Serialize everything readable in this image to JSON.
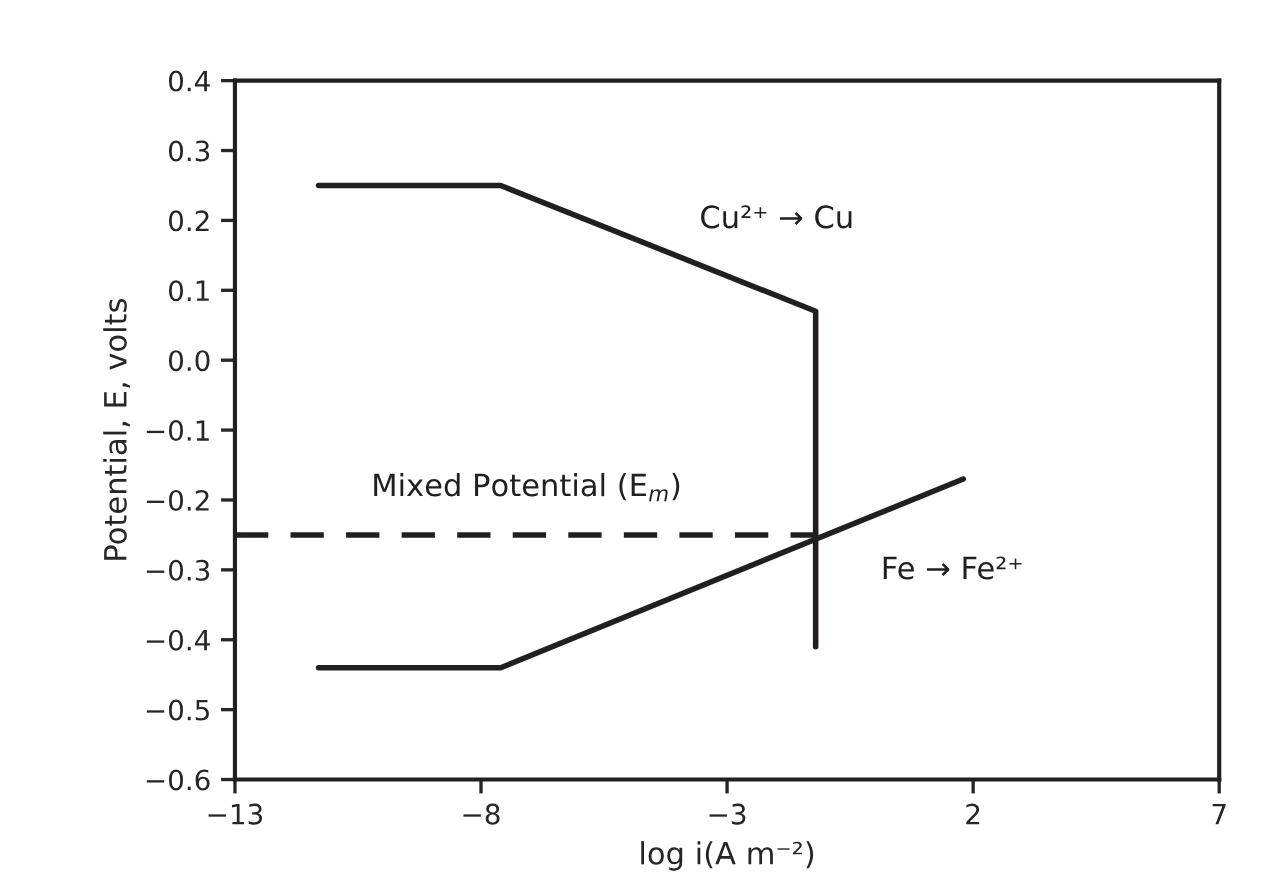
{
  "chart_data": {
    "type": "line",
    "xlabel": "log i(A m⁻²)",
    "ylabel": "Potential, E, volts",
    "series": [
      {
        "name": "Cu²⁺ → Cu",
        "color": "#231f20",
        "x": [
          -11.3,
          -7.6,
          -1.2,
          -1.2
        ],
        "values": [
          0.25,
          0.25,
          0.07,
          -0.41
        ],
        "line_style": "solid"
      },
      {
        "name": "Fe → Fe²⁺",
        "color": "#231f20",
        "x": [
          -11.3,
          -7.6,
          1.8
        ],
        "values": [
          -0.44,
          -0.44,
          -0.17
        ],
        "line_style": "solid"
      },
      {
        "name": "Mixed Potential (E$_{m}$)",
        "color": "#231f20",
        "x": [
          -13,
          -1.2
        ],
        "values": [
          -0.25,
          -0.25
        ],
        "line_style": "dashed"
      }
    ],
    "xlim": [
      -13,
      7
    ],
    "xticks": [
      {
        "value": -13,
        "label": "−13"
      },
      {
        "value": -8,
        "label": "−8"
      },
      {
        "value": -3,
        "label": "−3"
      },
      2,
      7
    ],
    "ylim": [
      -0.6,
      0.4
    ],
    "yticks": [
      {
        "value": -0.6,
        "label": "−0.6"
      },
      {
        "value": -0.5,
        "label": "−0.5"
      },
      {
        "value": -0.4,
        "label": "−0.4"
      },
      {
        "value": -0.3,
        "label": "−0.3"
      },
      {
        "value": -0.2,
        "label": "−0.2"
      },
      {
        "value": -0.1,
        "label": "−0.1"
      },
      {
        "value": 0.0,
        "label": "0.0"
      },
      {
        "value": 0.1,
        "label": "0.1"
      },
      {
        "value": 0.2,
        "label": "0.2"
      },
      {
        "value": 0.3,
        "label": "0.3"
      },
      {
        "value": 0.4,
        "label": "0.4"
      }
    ],
    "grid": false,
    "legend": false,
    "marker": "none"
  }
}
